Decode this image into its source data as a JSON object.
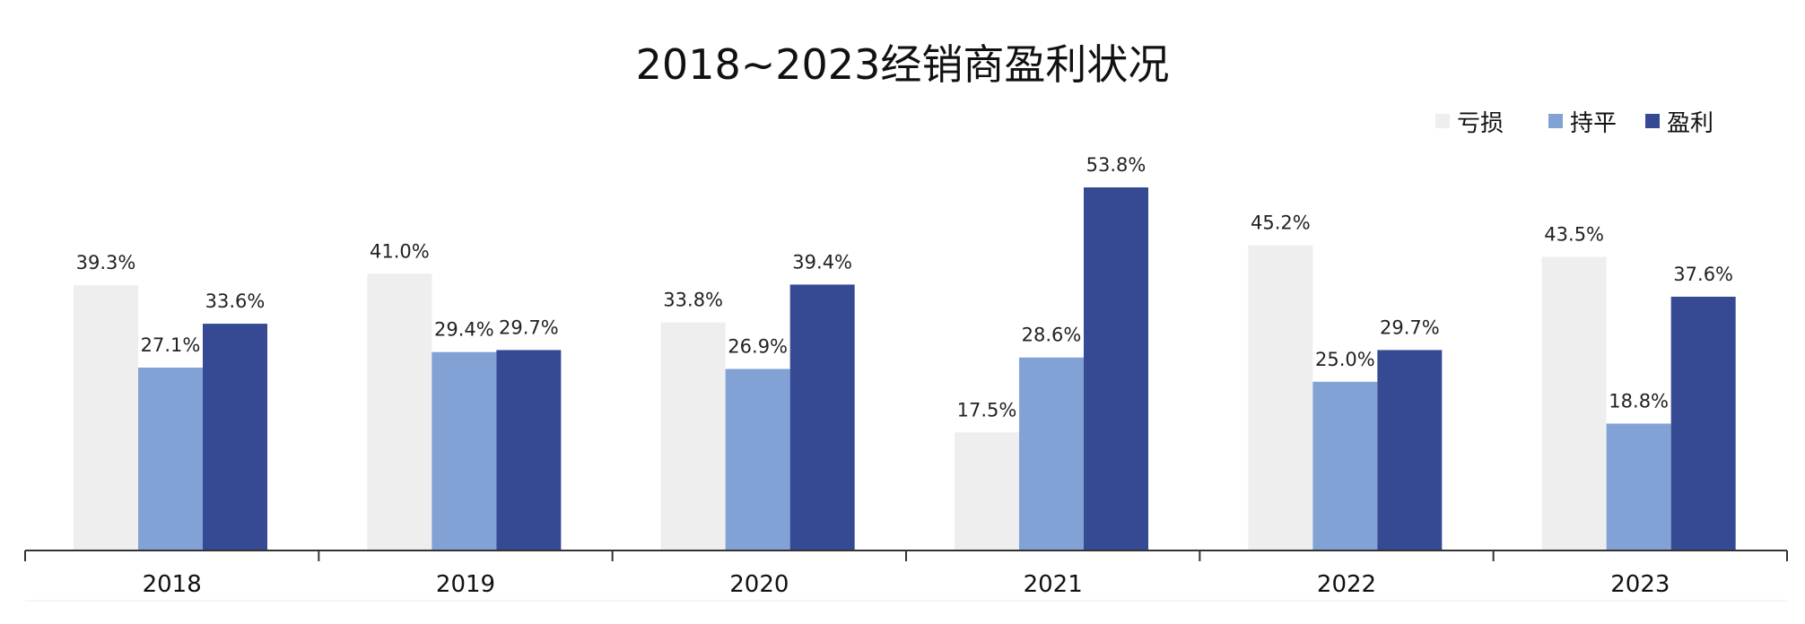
{
  "chart_data": {
    "type": "bar",
    "title": "2018~2023经销商盈利状况",
    "categories": [
      "2018",
      "2019",
      "2020",
      "2021",
      "2022",
      "2023"
    ],
    "series": [
      {
        "name": "亏损",
        "color": "#eeeeee",
        "values": [
          39.3,
          41.0,
          33.8,
          17.5,
          45.2,
          43.5
        ],
        "labels": [
          "39.3%",
          "41.0%",
          "33.8%",
          "17.5%",
          "45.2%",
          "43.5%"
        ]
      },
      {
        "name": "持平",
        "color": "#82a2d6",
        "values": [
          27.1,
          29.4,
          26.9,
          28.6,
          25.0,
          18.8
        ],
        "labels": [
          "27.1%",
          "29.4%",
          "26.9%",
          "28.6%",
          "25.0%",
          "18.8%"
        ]
      },
      {
        "name": "盈利",
        "color": "#364a94",
        "values": [
          33.6,
          29.7,
          39.4,
          53.8,
          29.7,
          37.6
        ],
        "labels": [
          "33.6%",
          "29.7%",
          "39.4%",
          "53.8%",
          "29.7%",
          "37.6%"
        ]
      }
    ],
    "ylim": [
      0,
      60
    ],
    "legend": "top-right",
    "grid": false,
    "xlabel": "",
    "ylabel": ""
  }
}
